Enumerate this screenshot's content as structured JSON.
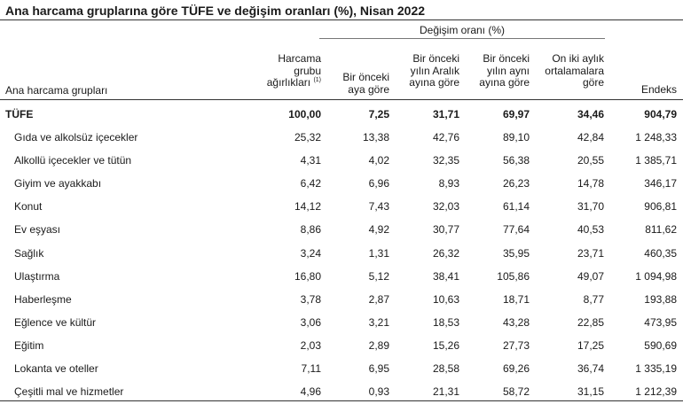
{
  "title": "Ana harcama gruplarına göre TÜFE ve değişim oranları (%), Nisan 2022",
  "group_header": "Değişim oranı (%)",
  "row_header_label": "Ana harcama grupları",
  "columns": [
    {
      "lines": [
        "Harcama",
        "grubu",
        "ağırlıkları"
      ],
      "footnote": "(1)"
    },
    {
      "lines": [
        "Bir önceki",
        "aya göre"
      ]
    },
    {
      "lines": [
        "Bir önceki",
        "yılın Aralık",
        "ayına göre"
      ]
    },
    {
      "lines": [
        "Bir önceki",
        "yılın aynı",
        "ayına göre"
      ]
    },
    {
      "lines": [
        "On iki aylık",
        "ortalamalara",
        "göre"
      ]
    },
    {
      "lines": [
        "Endeks"
      ]
    }
  ],
  "rows": [
    {
      "name": "TÜFE",
      "values": [
        "100,00",
        "7,25",
        "31,71",
        "69,97",
        "34,46",
        "904,79"
      ],
      "total": true
    },
    {
      "name": "Gıda ve alkolsüz içecekler",
      "values": [
        "25,32",
        "13,38",
        "42,76",
        "89,10",
        "42,84",
        "1 248,33"
      ]
    },
    {
      "name": "Alkollü içecekler ve tütün",
      "values": [
        "4,31",
        "4,02",
        "32,35",
        "56,38",
        "20,55",
        "1 385,71"
      ]
    },
    {
      "name": "Giyim ve ayakkabı",
      "values": [
        "6,42",
        "6,96",
        "8,93",
        "26,23",
        "14,78",
        "346,17"
      ]
    },
    {
      "name": "Konut",
      "values": [
        "14,12",
        "7,43",
        "32,03",
        "61,14",
        "31,70",
        "906,81"
      ]
    },
    {
      "name": "Ev eşyası",
      "values": [
        "8,86",
        "4,92",
        "30,77",
        "77,64",
        "40,53",
        "811,62"
      ]
    },
    {
      "name": "Sağlık",
      "values": [
        "3,24",
        "1,31",
        "26,32",
        "35,95",
        "23,71",
        "460,35"
      ]
    },
    {
      "name": "Ulaştırma",
      "values": [
        "16,80",
        "5,12",
        "38,41",
        "105,86",
        "49,07",
        "1 094,98"
      ]
    },
    {
      "name": "Haberleşme",
      "values": [
        "3,78",
        "2,87",
        "10,63",
        "18,71",
        "8,77",
        "193,88"
      ]
    },
    {
      "name": "Eğlence ve kültür",
      "values": [
        "3,06",
        "3,21",
        "18,53",
        "43,28",
        "22,85",
        "473,95"
      ]
    },
    {
      "name": "Eğitim",
      "values": [
        "2,03",
        "2,89",
        "15,26",
        "27,73",
        "17,25",
        "590,69"
      ]
    },
    {
      "name": "Lokanta ve oteller",
      "values": [
        "7,11",
        "6,95",
        "28,58",
        "69,26",
        "36,74",
        "1 335,19"
      ]
    },
    {
      "name": "Çeşitli mal ve hizmetler",
      "values": [
        "4,96",
        "0,93",
        "21,31",
        "58,72",
        "31,15",
        "1 212,39"
      ]
    }
  ]
}
